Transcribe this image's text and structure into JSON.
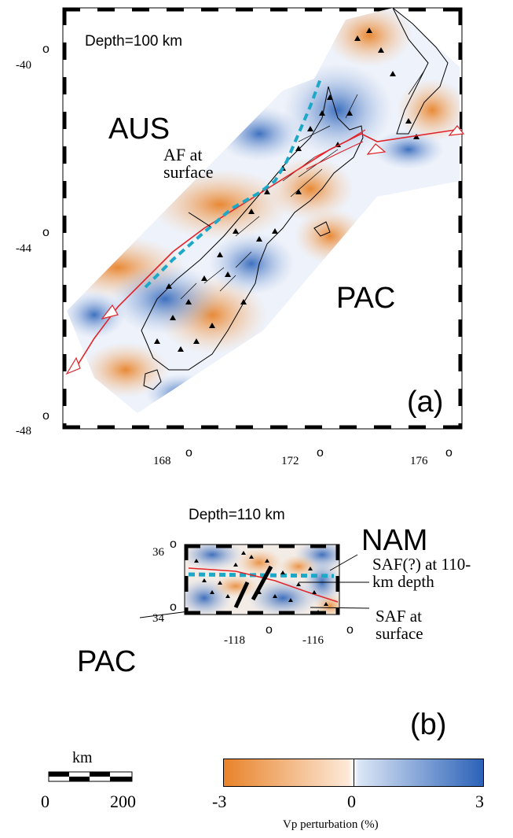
{
  "panel_a": {
    "depth_label": "Depth=100 km",
    "plate_left": "AUS",
    "plate_right": "PAC",
    "fault_label_line1": "AF at",
    "fault_label_line2": "surface",
    "panel_letter": "(a)",
    "lat_ticks": [
      "-40",
      "-44",
      "-48"
    ],
    "lon_ticks": [
      "168",
      "172",
      "176"
    ],
    "degree_symbol": "o"
  },
  "panel_b": {
    "depth_label": "Depth=110 km",
    "plate_top": "NAM",
    "plate_left": "PAC",
    "saf_depth_line1": "SAF(?) at 110-",
    "saf_depth_line2": "km depth",
    "saf_surface_line1": "SAF at",
    "saf_surface_line2": "surface",
    "panel_letter": "(b)",
    "lat_ticks": [
      "36",
      "34"
    ],
    "lon_ticks": [
      "-118",
      "-116"
    ],
    "degree_symbol": "o"
  },
  "scale_bar": {
    "unit": "km",
    "min": "0",
    "max": "200"
  },
  "colorbar": {
    "min": "-3",
    "mid": "0",
    "max": "3",
    "label": "Vp perturbation (%)",
    "color_slow": "#e8832a",
    "color_neutral": "#ffffff",
    "color_fast": "#2b62b8"
  },
  "colors": {
    "fault": "#e0242a",
    "slab_contour": "#1ea8c8",
    "coast": "#000000"
  }
}
